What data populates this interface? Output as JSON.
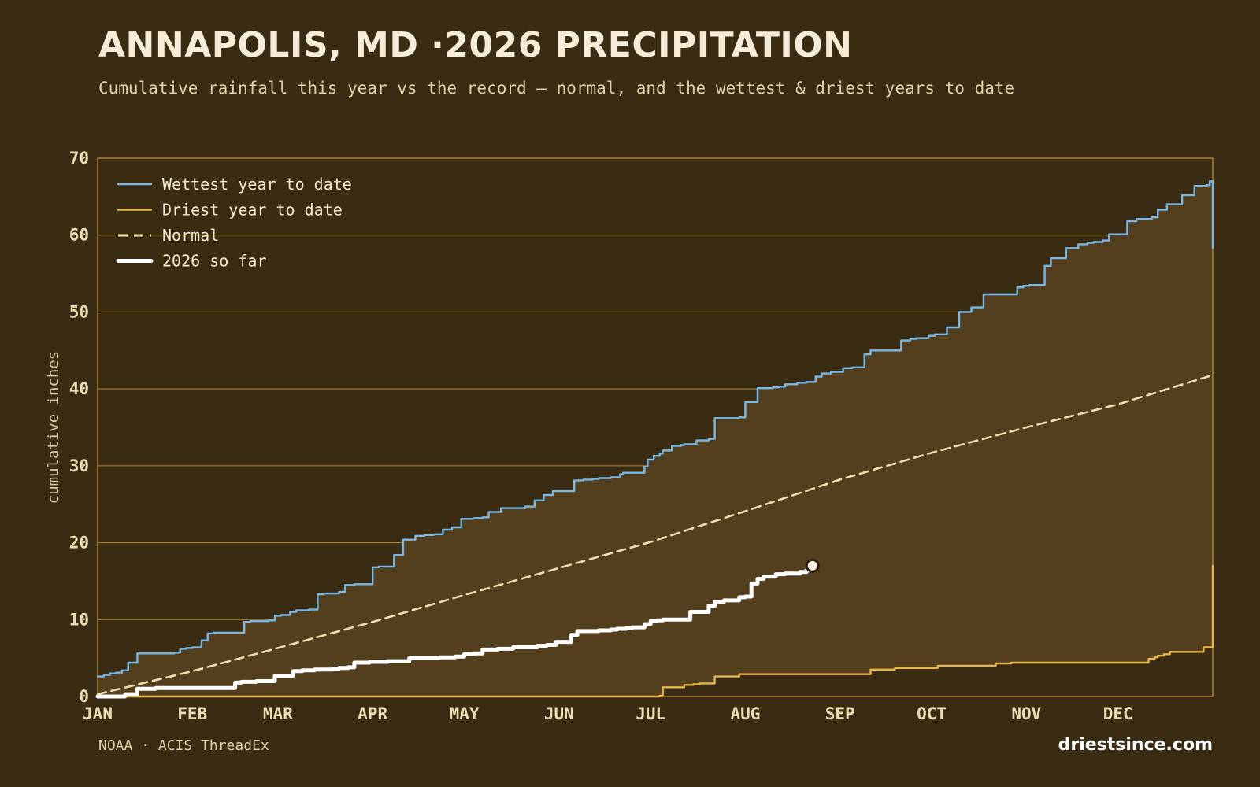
{
  "title": "ANNAPOLIS, MD ·2026 PRECIPITATION",
  "subtitle": "Cumulative rainfall this year vs the record — normal, and the wettest & driest years to date",
  "source": "NOAA · ACIS ThreadEx",
  "site": "driestsince.com",
  "colors": {
    "background": "#3a2c13",
    "band_fill": "#533f1e",
    "grid": "#c9973a",
    "wettest": "#7ab8e6",
    "driest": "#e8b64a",
    "normal": "#ecdcae",
    "this_year": "#ffffff",
    "tick_text": "#ecdcb4"
  },
  "chart_data": {
    "type": "line",
    "title": "ANNAPOLIS, MD ·2026 PRECIPITATION",
    "subtitle": "Cumulative rainfall this year vs the record — normal, and the wettest & driest years to date",
    "xlabel": "",
    "ylabel": "cumulative inches",
    "x_unit": "day of year",
    "xlim": [
      1,
      366
    ],
    "ylim": [
      0,
      70
    ],
    "y_ticks": [
      0,
      10,
      20,
      30,
      40,
      50,
      60,
      70
    ],
    "x_ticks": [
      {
        "day": 1,
        "label": "JAN"
      },
      {
        "day": 32,
        "label": "FEB"
      },
      {
        "day": 60,
        "label": "MAR"
      },
      {
        "day": 91,
        "label": "APR"
      },
      {
        "day": 121,
        "label": "MAY"
      },
      {
        "day": 152,
        "label": "JUN"
      },
      {
        "day": 182,
        "label": "JUL"
      },
      {
        "day": 213,
        "label": "AUG"
      },
      {
        "day": 244,
        "label": "SEP"
      },
      {
        "day": 274,
        "label": "OCT"
      },
      {
        "day": 305,
        "label": "NOV"
      },
      {
        "day": 335,
        "label": "DEC"
      }
    ],
    "grid": true,
    "legend_position": "top-left",
    "band_between": [
      "Driest year to date",
      "Wettest year to date"
    ],
    "series": [
      {
        "name": "Wettest year to date",
        "style": "solid",
        "color": "#7ab8e6",
        "x": [
          1,
          3,
          5,
          7,
          9,
          11,
          14,
          16,
          18,
          26,
          28,
          30,
          32,
          35,
          37,
          39,
          47,
          49,
          51,
          57,
          59,
          61,
          64,
          66,
          70,
          73,
          75,
          80,
          82,
          85,
          91,
          93,
          96,
          98,
          101,
          105,
          108,
          111,
          114,
          117,
          120,
          124,
          127,
          129,
          133,
          136,
          141,
          144,
          147,
          150,
          157,
          160,
          163,
          165,
          169,
          172,
          173,
          180,
          181,
          183,
          185,
          186,
          189,
          192,
          193,
          197,
          201,
          203,
          205,
          211,
          213,
          217,
          222,
          224,
          226,
          230,
          233,
          236,
          238,
          241,
          245,
          248,
          252,
          254,
          256,
          258,
          264,
          267,
          269,
          271,
          273,
          275,
          279,
          283,
          287,
          291,
          302,
          304,
          306,
          309,
          311,
          313,
          316,
          318,
          322,
          325,
          327,
          330,
          332,
          338,
          341,
          346,
          348,
          351,
          356,
          360,
          364,
          365,
          366
        ],
        "y": [
          2.6,
          2.8,
          3.0,
          3.1,
          3.4,
          4.4,
          5.6,
          5.6,
          5.6,
          5.7,
          6.2,
          6.3,
          6.4,
          7.3,
          8.2,
          8.3,
          8.3,
          9.7,
          9.8,
          9.9,
          10.5,
          10.6,
          11.0,
          11.2,
          11.3,
          13.3,
          13.4,
          13.6,
          14.5,
          14.6,
          16.8,
          16.9,
          16.9,
          18.4,
          20.4,
          20.9,
          21.0,
          21.1,
          21.7,
          22.0,
          23.1,
          23.2,
          23.3,
          24.0,
          24.5,
          24.5,
          24.7,
          25.5,
          26.2,
          26.7,
          28.1,
          28.2,
          28.3,
          28.4,
          28.5,
          28.9,
          29.1,
          29.9,
          30.8,
          31.3,
          31.6,
          32.0,
          32.6,
          32.7,
          32.8,
          33.3,
          33.5,
          36.2,
          36.2,
          36.3,
          38.3,
          40.1,
          40.2,
          40.3,
          40.6,
          40.8,
          40.9,
          41.6,
          42.0,
          42.2,
          42.7,
          42.8,
          44.5,
          45.0,
          45.0,
          45.0,
          46.3,
          46.5,
          46.6,
          46.6,
          46.9,
          47.1,
          48.0,
          50.0,
          50.6,
          52.3,
          53.2,
          53.4,
          53.5,
          53.5,
          56.0,
          57.0,
          57.0,
          58.3,
          58.8,
          59.0,
          59.1,
          59.3,
          60.1,
          61.8,
          62.1,
          62.3,
          63.3,
          64.0,
          65.2,
          66.4,
          66.5,
          67.0,
          58.3
        ]
      },
      {
        "name": "Driest year to date",
        "style": "solid",
        "color": "#e8b64a",
        "x": [
          1,
          180,
          185,
          186,
          191,
          193,
          196,
          198,
          203,
          211,
          240,
          249,
          254,
          262,
          276,
          289,
          295,
          300,
          342,
          345,
          347,
          348,
          350,
          352,
          355,
          363,
          365,
          366
        ],
        "y": [
          0,
          0,
          0.1,
          1.2,
          1.2,
          1.5,
          1.6,
          1.7,
          2.6,
          2.9,
          2.9,
          2.9,
          3.5,
          3.7,
          4.0,
          4.0,
          4.3,
          4.4,
          4.4,
          4.9,
          5.1,
          5.3,
          5.5,
          5.8,
          5.8,
          6.4,
          6.4,
          17.0
        ]
      },
      {
        "name": "Normal",
        "style": "dashed",
        "color": "#ecdcae",
        "x": [
          1,
          32,
          60,
          91,
          121,
          152,
          182,
          213,
          244,
          274,
          305,
          335,
          366
        ],
        "y": [
          0.3,
          3.3,
          6.3,
          9.7,
          13.2,
          16.7,
          20.1,
          24.1,
          28.2,
          31.7,
          35.0,
          38.0,
          41.8
        ]
      },
      {
        "name": "2026 so far",
        "style": "solid-thick",
        "color": "#ffffff",
        "x": [
          1,
          9,
          10,
          14,
          20,
          27,
          36,
          44,
          46,
          48,
          53,
          59,
          63,
          65,
          67,
          68,
          72,
          78,
          80,
          83,
          85,
          90,
          93,
          96,
          97,
          103,
          106,
          109,
          113,
          118,
          121,
          124,
          127,
          132,
          137,
          142,
          145,
          148,
          151,
          156,
          158,
          160,
          165,
          169,
          171,
          174,
          176,
          180,
          182,
          184,
          186,
          188,
          195,
          201,
          203,
          206,
          211,
          213,
          215,
          217,
          219,
          223,
          226,
          231,
          233,
          235
        ],
        "y": [
          0,
          0,
          0.3,
          1.0,
          1.1,
          1.1,
          1.1,
          1.1,
          1.8,
          1.9,
          2.0,
          2.7,
          2.7,
          3.3,
          3.3,
          3.4,
          3.5,
          3.6,
          3.7,
          3.8,
          4.4,
          4.5,
          4.5,
          4.6,
          4.6,
          5.0,
          5.0,
          5.0,
          5.1,
          5.2,
          5.5,
          5.6,
          6.1,
          6.2,
          6.4,
          6.4,
          6.6,
          6.7,
          7.1,
          8.0,
          8.5,
          8.5,
          8.6,
          8.7,
          8.8,
          8.9,
          9.0,
          9.4,
          9.8,
          9.9,
          10.0,
          10.0,
          11.0,
          11.8,
          12.3,
          12.5,
          12.9,
          13.0,
          14.7,
          15.3,
          15.6,
          15.9,
          16.0,
          16.2,
          16.4,
          17.0
        ],
        "end_marker": true
      }
    ]
  }
}
